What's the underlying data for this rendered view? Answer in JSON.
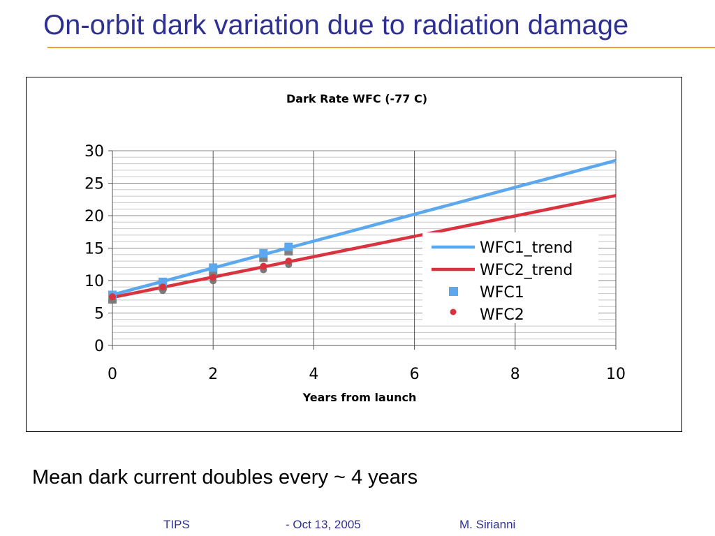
{
  "slide": {
    "title": "On-orbit dark variation due to radiation damage",
    "caption": "Mean dark current doubles  every ~ 4 years",
    "footer": {
      "left": "TIPS",
      "center": "- Oct 13, 2005",
      "right": "M. Sirianni"
    }
  },
  "chart_data": {
    "type": "scatter",
    "title": "Dark Rate WFC (-77 C)",
    "xlabel": "Years from launch",
    "ylabel": "",
    "xlim": [
      0,
      10
    ],
    "ylim": [
      0,
      30
    ],
    "xticks": [
      0,
      2,
      4,
      6,
      8,
      10
    ],
    "yticks": [
      0,
      5,
      10,
      15,
      20,
      25,
      30
    ],
    "grid": true,
    "legend_position": "right",
    "series": [
      {
        "name": "WFC1_trend",
        "kind": "line",
        "color": "#5BA8EE",
        "x": [
          0,
          10
        ],
        "y": [
          7.8,
          28.5
        ]
      },
      {
        "name": "WFC2_trend",
        "kind": "line",
        "color": "#D9333F",
        "x": [
          0,
          10
        ],
        "y": [
          7.4,
          23.1
        ]
      },
      {
        "name": "WFC1",
        "kind": "marker",
        "marker": "square",
        "color": "#5BA8EE",
        "x": [
          0,
          1,
          2,
          3,
          3.5
        ],
        "y": [
          7.8,
          9.8,
          12.0,
          14.2,
          15.2
        ]
      },
      {
        "name": "WFC2",
        "kind": "marker",
        "marker": "circle",
        "color": "#D9333F",
        "x": [
          0,
          1,
          2,
          3,
          3.5
        ],
        "y": [
          7.5,
          9.0,
          10.5,
          12.2,
          13.0
        ]
      }
    ]
  }
}
